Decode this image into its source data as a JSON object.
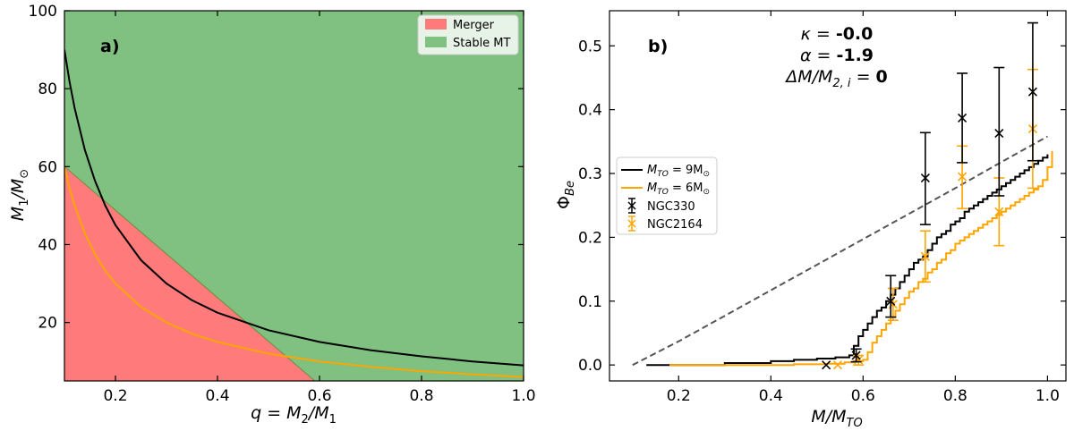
{
  "chart_data": [
    {
      "type": "area",
      "panel_label": "a)",
      "xlabel_parts": [
        "q = M",
        "2",
        "/M",
        "1"
      ],
      "ylabel_parts": [
        "M",
        "1",
        "/M",
        "⊙"
      ],
      "xlim": [
        0.1,
        1.0
      ],
      "ylim": [
        5,
        100
      ],
      "xticks": [
        0.2,
        0.4,
        0.6,
        0.8,
        1.0
      ],
      "xtick_labels": [
        "0.2",
        "0.4",
        "0.6",
        "0.8",
        "1.0"
      ],
      "yticks": [
        20,
        40,
        60,
        80,
        100
      ],
      "ytick_labels": [
        "20",
        "40",
        "60",
        "80",
        "100"
      ],
      "regions": [
        {
          "name": "Merger",
          "color": "#ff7b7b",
          "polygon": [
            [
              0.1,
              60
            ],
            [
              0.1,
              5
            ],
            [
              0.5909,
              5
            ]
          ]
        },
        {
          "name": "Stable MT",
          "color": "#80c080"
        }
      ],
      "series": [
        {
          "name": "black curve",
          "color": "#000000",
          "x": [
            0.1,
            0.11,
            0.12,
            0.14,
            0.16,
            0.18,
            0.2,
            0.25,
            0.3,
            0.35,
            0.4,
            0.5,
            0.6,
            0.7,
            0.8,
            0.9,
            1.0
          ],
          "y": [
            90,
            81.8,
            75,
            64.3,
            56.3,
            50,
            45,
            36,
            30,
            25.7,
            22.5,
            18,
            15,
            12.9,
            11.3,
            10,
            9
          ]
        },
        {
          "name": "orange curve",
          "color": "#ffa500",
          "x": [
            0.1,
            0.11,
            0.12,
            0.14,
            0.16,
            0.18,
            0.2,
            0.25,
            0.3,
            0.35,
            0.4,
            0.5,
            0.6,
            0.7,
            0.8,
            0.9,
            1.0
          ],
          "y": [
            60,
            54.5,
            50,
            42.9,
            37.5,
            33.3,
            30,
            24,
            20,
            17.1,
            15,
            12,
            10,
            8.6,
            7.5,
            6.7,
            6
          ]
        }
      ],
      "legend": [
        {
          "label": "Merger",
          "color": "#ff7b7b"
        },
        {
          "label": "Stable MT",
          "color": "#80c080"
        }
      ],
      "legend_position": "top-right"
    },
    {
      "type": "line",
      "panel_label": "b)",
      "xlabel_parts": [
        "M/M",
        "TO"
      ],
      "ylabel_parts": [
        "Φ",
        "Be"
      ],
      "xlim": [
        0.05,
        1.04
      ],
      "ylim": [
        -0.025,
        0.555
      ],
      "xticks": [
        0.2,
        0.4,
        0.6,
        0.8,
        1.0
      ],
      "xtick_labels": [
        "0.2",
        "0.4",
        "0.6",
        "0.8",
        "1.0"
      ],
      "yticks": [
        0.0,
        0.1,
        0.2,
        0.3,
        0.4,
        0.5
      ],
      "ytick_labels": [
        "0.0",
        "0.1",
        "0.2",
        "0.3",
        "0.4",
        "0.5"
      ],
      "annotations": {
        "kappa_label": "κ = ",
        "kappa_value": "-0.0",
        "alpha_label": "α =  ",
        "alpha_value": "-1.9",
        "dm_label_parts": [
          "ΔM/M",
          "2, i",
          " =  "
        ],
        "dm_value": "0"
      },
      "dashed_curve": {
        "color": "#555555",
        "x": [
          0.1,
          0.2,
          0.3,
          0.4,
          0.5,
          0.6,
          0.7,
          0.8,
          0.9,
          1.0
        ],
        "y": [
          0.0,
          0.037,
          0.077,
          0.117,
          0.157,
          0.197,
          0.237,
          0.277,
          0.318,
          0.358
        ]
      },
      "series": [
        {
          "name": "M_TO = 9 M⊙",
          "legend_parts": [
            "M",
            "TO",
            " = 9M",
            "⊙"
          ],
          "color": "#000000",
          "x": [
            0.13,
            0.2,
            0.3,
            0.4,
            0.45,
            0.5,
            0.54,
            0.57,
            0.58,
            0.59,
            0.6,
            0.61,
            0.62,
            0.63,
            0.64,
            0.65,
            0.66,
            0.67,
            0.68,
            0.69,
            0.7,
            0.71,
            0.72,
            0.73,
            0.74,
            0.75,
            0.76,
            0.77,
            0.78,
            0.79,
            0.8,
            0.81,
            0.82,
            0.83,
            0.84,
            0.85,
            0.86,
            0.87,
            0.88,
            0.89,
            0.9,
            0.91,
            0.92,
            0.93,
            0.94,
            0.95,
            0.96,
            0.97,
            0.98,
            0.99,
            1.0
          ],
          "y": [
            0.0,
            0.0,
            0.003,
            0.006,
            0.008,
            0.01,
            0.012,
            0.015,
            0.03,
            0.045,
            0.055,
            0.065,
            0.075,
            0.085,
            0.09,
            0.1,
            0.11,
            0.12,
            0.13,
            0.14,
            0.15,
            0.16,
            0.165,
            0.17,
            0.18,
            0.19,
            0.2,
            0.205,
            0.21,
            0.22,
            0.225,
            0.23,
            0.24,
            0.245,
            0.25,
            0.255,
            0.26,
            0.265,
            0.27,
            0.275,
            0.28,
            0.285,
            0.29,
            0.295,
            0.3,
            0.305,
            0.31,
            0.315,
            0.32,
            0.325,
            0.33
          ]
        },
        {
          "name": "M_TO = 6 M⊙",
          "legend_parts": [
            "M",
            "TO",
            " = 6M",
            "⊙"
          ],
          "color": "#ffa500",
          "x": [
            0.18,
            0.25,
            0.35,
            0.45,
            0.52,
            0.56,
            0.58,
            0.6,
            0.61,
            0.62,
            0.63,
            0.64,
            0.65,
            0.66,
            0.67,
            0.68,
            0.69,
            0.7,
            0.71,
            0.72,
            0.73,
            0.74,
            0.75,
            0.76,
            0.77,
            0.78,
            0.79,
            0.8,
            0.81,
            0.82,
            0.83,
            0.84,
            0.85,
            0.86,
            0.87,
            0.88,
            0.89,
            0.9,
            0.91,
            0.92,
            0.93,
            0.94,
            0.95,
            0.96,
            0.97,
            0.98,
            0.99,
            1.0,
            1.01
          ],
          "y": [
            0.0,
            0.0,
            0.0,
            0.001,
            0.002,
            0.004,
            0.006,
            0.008,
            0.02,
            0.035,
            0.045,
            0.055,
            0.065,
            0.075,
            0.085,
            0.095,
            0.105,
            0.115,
            0.12,
            0.13,
            0.135,
            0.145,
            0.15,
            0.16,
            0.165,
            0.175,
            0.18,
            0.19,
            0.195,
            0.2,
            0.205,
            0.21,
            0.215,
            0.22,
            0.225,
            0.23,
            0.235,
            0.24,
            0.245,
            0.25,
            0.255,
            0.26,
            0.265,
            0.27,
            0.275,
            0.28,
            0.29,
            0.31,
            0.335
          ]
        }
      ],
      "errorbar_series": [
        {
          "name": "NGC330",
          "color": "#000000",
          "points": [
            {
              "x": 0.52,
              "y": 0.0,
              "lo": 0.0,
              "hi": 0.0
            },
            {
              "x": 0.585,
              "y": 0.015,
              "lo": 0.005,
              "hi": 0.025
            },
            {
              "x": 0.66,
              "y": 0.1,
              "lo": 0.075,
              "hi": 0.14
            },
            {
              "x": 0.735,
              "y": 0.293,
              "lo": 0.22,
              "hi": 0.364
            },
            {
              "x": 0.815,
              "y": 0.387,
              "lo": 0.317,
              "hi": 0.457
            },
            {
              "x": 0.895,
              "y": 0.363,
              "lo": 0.265,
              "hi": 0.466
            },
            {
              "x": 0.968,
              "y": 0.428,
              "lo": 0.32,
              "hi": 0.536
            }
          ]
        },
        {
          "name": "NGC2164",
          "color": "#ffa500",
          "points": [
            {
              "x": 0.545,
              "y": 0.0,
              "lo": 0.0,
              "hi": 0.0
            },
            {
              "x": 0.59,
              "y": 0.008,
              "lo": 0.0,
              "hi": 0.015
            },
            {
              "x": 0.665,
              "y": 0.095,
              "lo": 0.07,
              "hi": 0.12
            },
            {
              "x": 0.735,
              "y": 0.17,
              "lo": 0.13,
              "hi": 0.21
            },
            {
              "x": 0.815,
              "y": 0.295,
              "lo": 0.245,
              "hi": 0.343
            },
            {
              "x": 0.895,
              "y": 0.24,
              "lo": 0.187,
              "hi": 0.293
            },
            {
              "x": 0.968,
              "y": 0.37,
              "lo": 0.277,
              "hi": 0.463
            }
          ]
        }
      ],
      "legend_position": "center-left"
    }
  ]
}
